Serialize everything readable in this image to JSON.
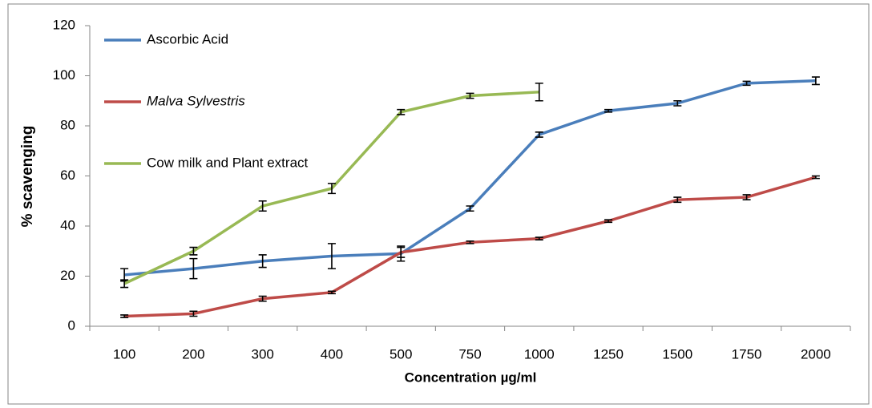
{
  "chart_data": {
    "type": "line",
    "xlabel": "Concentration µg/ml",
    "ylabel": "% scavenging",
    "categories": [
      "100",
      "200",
      "300",
      "400",
      "500",
      "750",
      "1000",
      "1250",
      "1500",
      "1750",
      "2000"
    ],
    "ylim": [
      0,
      120
    ],
    "yticks": [
      0,
      20,
      40,
      60,
      80,
      100,
      120
    ],
    "legend": "top-left",
    "series": [
      {
        "name": "Ascorbic Acid",
        "color": "#4a7ebb",
        "values": [
          20.5,
          23,
          26,
          28,
          29,
          47,
          76.5,
          86,
          89,
          97,
          98
        ],
        "errors": [
          2.5,
          4,
          2.5,
          5,
          3,
          1,
          1,
          0.5,
          1,
          0.8,
          1.5
        ]
      },
      {
        "name": "Malva Sylvestris",
        "color": "#be4b48",
        "font_style": "italic",
        "values": [
          4,
          5,
          11,
          13.5,
          29.5,
          33.5,
          35,
          42,
          50.5,
          51.5,
          59.5
        ],
        "errors": [
          0.5,
          1,
          1,
          0.5,
          2,
          0.5,
          0.5,
          0.5,
          1,
          1,
          0.5
        ]
      },
      {
        "name": "Cow milk and Plant extract",
        "color": "#98b954",
        "values": [
          17,
          30,
          48,
          55,
          85.5,
          92,
          93.5,
          null,
          null,
          null,
          null
        ],
        "errors": [
          1.5,
          1.5,
          2,
          2,
          1,
          1,
          3.5,
          null,
          null,
          null,
          null
        ]
      }
    ]
  }
}
